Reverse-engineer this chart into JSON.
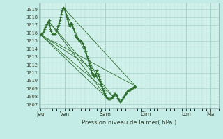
{
  "background_color": "#c4ece6",
  "plot_bg_color": "#d0f0ea",
  "grid_major_color": "#a8d4cc",
  "grid_minor_color": "#b8ddd8",
  "line_color": "#2d6e2d",
  "ylabel_ticks": [
    1007,
    1008,
    1009,
    1010,
    1011,
    1012,
    1013,
    1014,
    1015,
    1016,
    1017,
    1018,
    1019
  ],
  "xlabel": "Pression niveau de la mer( hPa )",
  "day_labels": [
    "Jeu",
    "Ven",
    "Sam",
    "Dim",
    "Lun",
    "Ma"
  ],
  "day_positions": [
    0,
    36,
    96,
    156,
    216,
    252
  ],
  "ylim": [
    1006.5,
    1019.8
  ],
  "xlim": [
    -2,
    264
  ],
  "main_series": [
    [
      0,
      1015.8
    ],
    [
      1,
      1015.85
    ],
    [
      2,
      1015.9
    ],
    [
      3,
      1016.0
    ],
    [
      4,
      1016.1
    ],
    [
      5,
      1016.3
    ],
    [
      6,
      1016.5
    ],
    [
      7,
      1016.7
    ],
    [
      8,
      1016.9
    ],
    [
      9,
      1017.1
    ],
    [
      10,
      1017.2
    ],
    [
      11,
      1017.35
    ],
    [
      12,
      1017.5
    ],
    [
      13,
      1017.6
    ],
    [
      14,
      1017.0
    ],
    [
      15,
      1016.5
    ],
    [
      16,
      1016.2
    ],
    [
      17,
      1016.0
    ],
    [
      18,
      1015.9
    ],
    [
      19,
      1015.85
    ],
    [
      20,
      1015.8
    ],
    [
      21,
      1015.85
    ],
    [
      22,
      1015.9
    ],
    [
      23,
      1016.0
    ],
    [
      24,
      1016.2
    ],
    [
      25,
      1016.5
    ],
    [
      26,
      1016.8
    ],
    [
      27,
      1017.0
    ],
    [
      28,
      1017.3
    ],
    [
      29,
      1017.6
    ],
    [
      30,
      1018.0
    ],
    [
      31,
      1018.4
    ],
    [
      32,
      1018.8
    ],
    [
      33,
      1019.1
    ],
    [
      34,
      1019.2
    ],
    [
      35,
      1019.1
    ],
    [
      36,
      1018.9
    ],
    [
      37,
      1018.6
    ],
    [
      38,
      1018.3
    ],
    [
      39,
      1018.0
    ],
    [
      40,
      1017.7
    ],
    [
      41,
      1017.4
    ],
    [
      42,
      1017.1
    ],
    [
      43,
      1016.8
    ],
    [
      44,
      1016.9
    ],
    [
      45,
      1017.1
    ],
    [
      46,
      1017.3
    ],
    [
      47,
      1017.1
    ],
    [
      48,
      1016.9
    ],
    [
      49,
      1016.6
    ],
    [
      50,
      1016.3
    ],
    [
      51,
      1016.0
    ],
    [
      52,
      1015.7
    ],
    [
      53,
      1015.5
    ],
    [
      54,
      1015.4
    ],
    [
      55,
      1015.3
    ],
    [
      56,
      1015.2
    ],
    [
      57,
      1015.15
    ],
    [
      58,
      1015.1
    ],
    [
      59,
      1015.05
    ],
    [
      60,
      1015.0
    ],
    [
      61,
      1014.9
    ],
    [
      62,
      1014.75
    ],
    [
      63,
      1014.6
    ],
    [
      64,
      1014.4
    ],
    [
      65,
      1014.2
    ],
    [
      66,
      1014.0
    ],
    [
      67,
      1013.7
    ],
    [
      68,
      1013.4
    ],
    [
      69,
      1013.1
    ],
    [
      70,
      1012.8
    ],
    [
      71,
      1012.5
    ],
    [
      72,
      1012.2
    ],
    [
      73,
      1011.9
    ],
    [
      74,
      1011.6
    ],
    [
      75,
      1011.3
    ],
    [
      76,
      1011.0
    ],
    [
      77,
      1010.8
    ],
    [
      78,
      1010.7
    ],
    [
      79,
      1010.6
    ],
    [
      80,
      1010.5
    ],
    [
      81,
      1010.55
    ],
    [
      82,
      1010.7
    ],
    [
      83,
      1011.0
    ],
    [
      84,
      1011.3
    ],
    [
      85,
      1011.1
    ],
    [
      86,
      1010.8
    ],
    [
      87,
      1010.5
    ],
    [
      88,
      1010.2
    ],
    [
      89,
      1009.9
    ],
    [
      90,
      1009.6
    ],
    [
      91,
      1009.3
    ],
    [
      92,
      1009.0
    ],
    [
      93,
      1008.8
    ],
    [
      94,
      1008.6
    ],
    [
      95,
      1008.4
    ],
    [
      96,
      1008.2
    ],
    [
      97,
      1008.0
    ],
    [
      98,
      1007.9
    ],
    [
      99,
      1007.8
    ],
    [
      100,
      1007.75
    ],
    [
      101,
      1007.7
    ],
    [
      102,
      1007.7
    ],
    [
      103,
      1007.7
    ],
    [
      104,
      1007.75
    ],
    [
      105,
      1007.8
    ],
    [
      106,
      1007.9
    ],
    [
      107,
      1008.0
    ],
    [
      108,
      1008.1
    ],
    [
      109,
      1008.2
    ],
    [
      110,
      1008.3
    ],
    [
      111,
      1008.35
    ],
    [
      112,
      1008.3
    ],
    [
      113,
      1008.2
    ],
    [
      114,
      1008.0
    ],
    [
      115,
      1007.8
    ],
    [
      116,
      1007.6
    ],
    [
      117,
      1007.5
    ],
    [
      118,
      1007.4
    ],
    [
      119,
      1007.4
    ],
    [
      120,
      1007.5
    ],
    [
      121,
      1007.6
    ],
    [
      122,
      1007.7
    ],
    [
      123,
      1007.9
    ],
    [
      124,
      1008.0
    ],
    [
      125,
      1008.15
    ],
    [
      126,
      1008.3
    ],
    [
      127,
      1008.45
    ],
    [
      128,
      1008.6
    ],
    [
      129,
      1008.7
    ],
    [
      130,
      1008.75
    ],
    [
      131,
      1008.8
    ],
    [
      132,
      1008.85
    ],
    [
      133,
      1008.9
    ],
    [
      134,
      1008.95
    ],
    [
      135,
      1009.0
    ],
    [
      136,
      1009.05
    ],
    [
      137,
      1009.1
    ],
    [
      138,
      1009.15
    ],
    [
      139,
      1009.2
    ],
    [
      140,
      1009.25
    ],
    [
      141,
      1009.3
    ]
  ],
  "straight_lines": [
    [
      [
        0,
        1015.8
      ],
      [
        141,
        1009.3
      ]
    ],
    [
      [
        0,
        1015.8
      ],
      [
        108,
        1008.0
      ]
    ],
    [
      [
        0,
        1015.8
      ],
      [
        100,
        1007.7
      ]
    ],
    [
      [
        0,
        1015.8
      ],
      [
        85,
        1011.1
      ]
    ],
    [
      [
        12,
        1017.5
      ],
      [
        100,
        1007.7
      ]
    ],
    [
      [
        12,
        1017.5
      ],
      [
        108,
        1008.0
      ]
    ],
    [
      [
        34,
        1019.2
      ],
      [
        100,
        1007.7
      ]
    ],
    [
      [
        34,
        1019.2
      ],
      [
        141,
        1009.3
      ]
    ]
  ]
}
